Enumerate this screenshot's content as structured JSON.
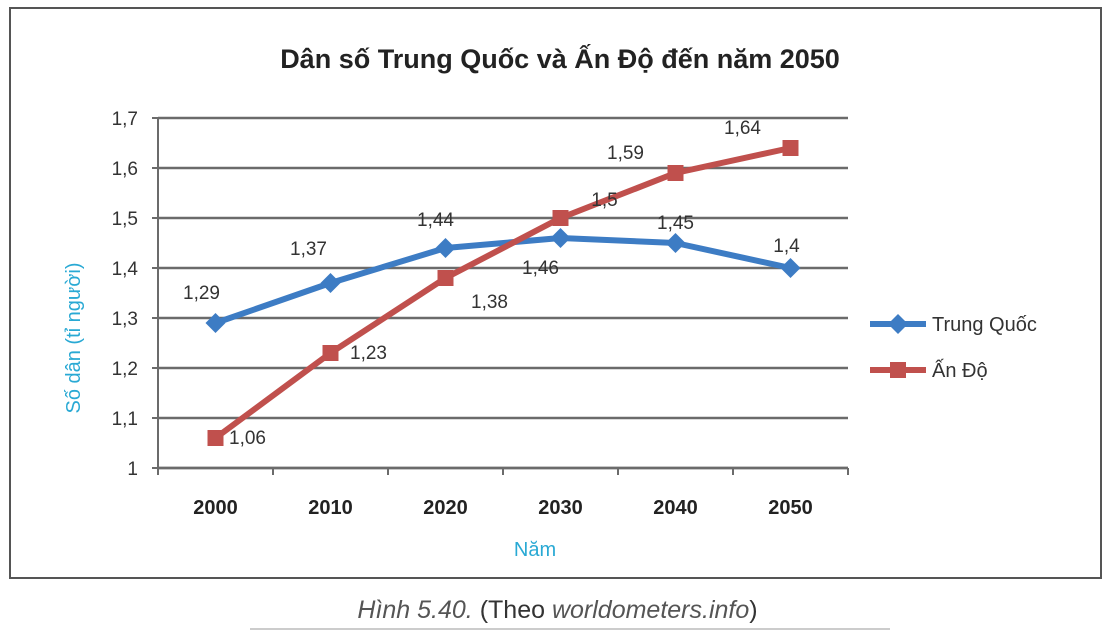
{
  "chart_data": {
    "type": "line",
    "title": "Dân số Trung Quốc và Ấn Độ đến năm 2050",
    "xlabel": "Năm",
    "ylabel": "Số dân (tỉ người)",
    "categories": [
      "2000",
      "2010",
      "2020",
      "2030",
      "2040",
      "2050"
    ],
    "ylim": [
      1,
      1.7
    ],
    "yticks": [
      1,
      1.1,
      1.2,
      1.3,
      1.4,
      1.5,
      1.6,
      1.7
    ],
    "ytick_labels": [
      "1",
      "1,1",
      "1,2",
      "1,3",
      "1,4",
      "1,5",
      "1,6",
      "1,7"
    ],
    "grid": true,
    "legend_position": "right",
    "series": [
      {
        "name": "Trung Quốc",
        "color": "#3d7cc4",
        "marker": "diamond",
        "values": [
          1.29,
          1.37,
          1.44,
          1.46,
          1.45,
          1.4
        ],
        "labels": [
          "1,29",
          "1,37",
          "1,44",
          "1,46",
          "1,45",
          "1,4"
        ]
      },
      {
        "name": "Ấn Độ",
        "color": "#c0504d",
        "marker": "square",
        "values": [
          1.06,
          1.23,
          1.38,
          1.5,
          1.59,
          1.64
        ],
        "labels": [
          "1,06",
          "1,23",
          "1,38",
          "1,5",
          "1,59",
          "1,64"
        ]
      }
    ]
  },
  "caption": {
    "figure": "Hình 5.40.",
    "prefix": " (Theo ",
    "source": "worldometers.info",
    "suffix": ")"
  }
}
